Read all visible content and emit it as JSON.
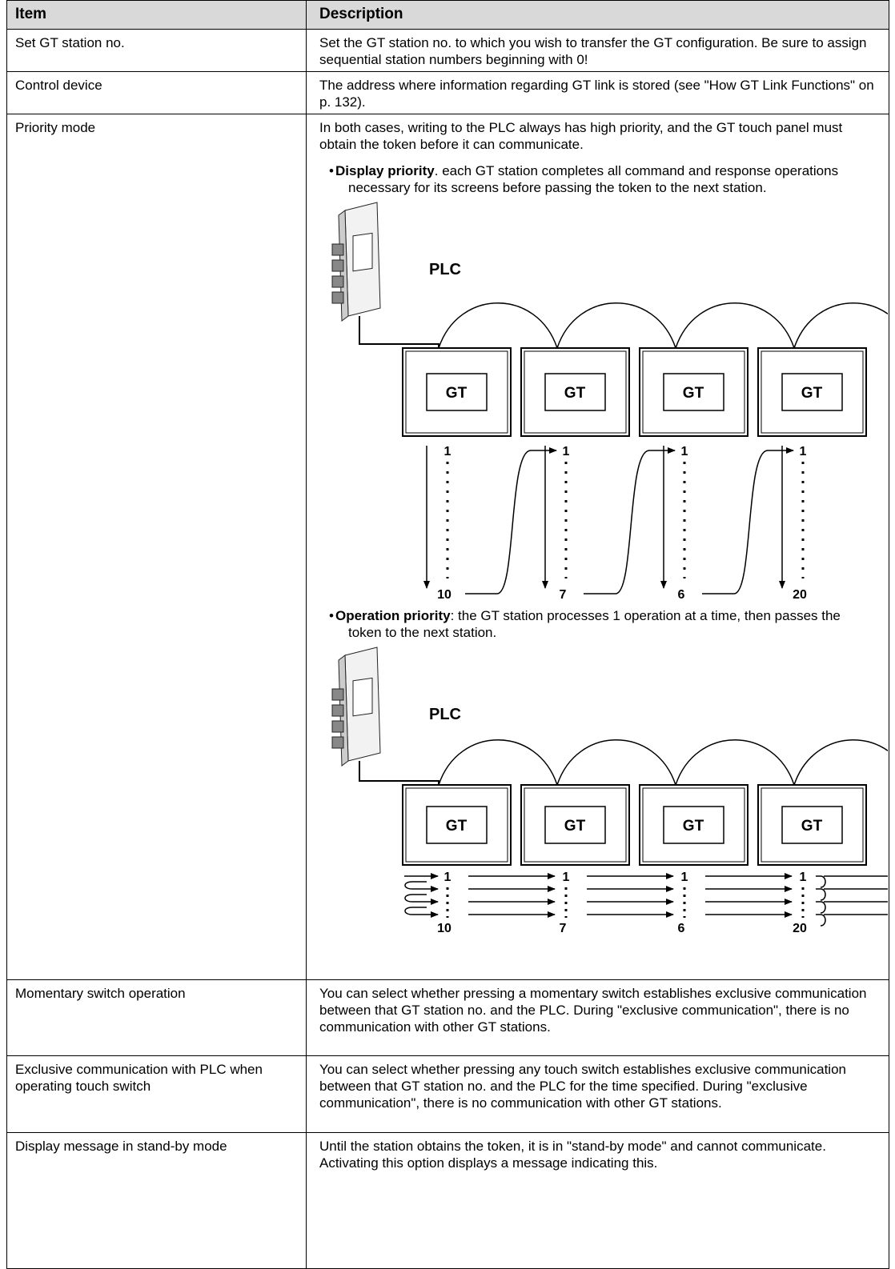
{
  "table": {
    "header": [
      "Item",
      "Description"
    ],
    "rows": [
      {
        "item": "Set GT station no.",
        "description": "Set the GT station no. to which you wish to transfer the GT configuration. Be sure to assign sequential station numbers beginning with 0!"
      },
      {
        "item": "Control device",
        "description": "The address where information regarding GT link is stored (see \"How GT Link Functions\" on p. 132)."
      },
      {
        "item": "Priority mode",
        "description": {
          "intro": "In both cases, writing to the PLC always has high priority, and the GT touch panel must obtain the token before it can communicate.",
          "bullets": [
            {
              "bold": "Display priority",
              "text": ". each GT station completes all command and response operations necessary for its screens before passing the token to the next station.",
              "diagram": {
                "plc": "PLC",
                "stations": [
                  {
                    "label": "GT",
                    "first": "1",
                    "last": "10"
                  },
                  {
                    "label": "GT",
                    "first": "1",
                    "last": "7"
                  },
                  {
                    "label": "GT",
                    "first": "1",
                    "last": "6"
                  },
                  {
                    "label": "GT",
                    "first": "1",
                    "last": "20"
                  }
                ]
              }
            },
            {
              "bold": "Operation priority",
              "text": ": the GT station processes 1 operation at a time, then passes the token to the next station.",
              "diagram": {
                "plc": "PLC",
                "stations": [
                  {
                    "label": "GT",
                    "first": "1",
                    "last": "10"
                  },
                  {
                    "label": "GT",
                    "first": "1",
                    "last": "7"
                  },
                  {
                    "label": "GT",
                    "first": "1",
                    "last": "6"
                  },
                  {
                    "label": "GT",
                    "first": "1",
                    "last": "20"
                  }
                ]
              }
            }
          ]
        }
      },
      {
        "item": "Momentary switch operation",
        "description": "You can select whether pressing a momentary switch establishes exclusive communication between that GT station no. and the PLC. During \"exclusive communication\", there is no communication with other GT stations."
      },
      {
        "item": "Exclusive communication with PLC when operating touch switch",
        "description": "You can select whether pressing any touch switch establishes exclusive communication between that GT station no. and the PLC for the time specified. During \"exclusive communication\", there is no communication with other GT stations."
      },
      {
        "item": "Display message in stand-by mode",
        "description": "Until the station obtains the token, it is in \"stand-by mode\" and cannot communicate. Activating this option displays a message indicating this."
      }
    ]
  }
}
